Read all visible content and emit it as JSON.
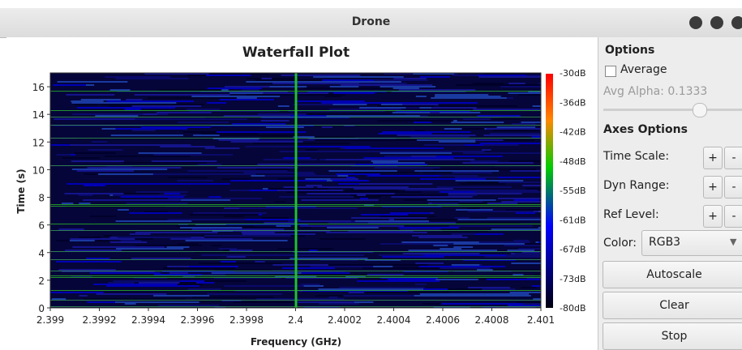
{
  "window": {
    "title": "Drone"
  },
  "plot": {
    "title": "Waterfall Plot",
    "x_label": "Frequency (GHz)",
    "y_label": "Time (s)",
    "xlim": [
      2.399,
      2.401
    ],
    "xticks": [
      2.399,
      2.3992,
      2.3994,
      2.3996,
      2.3998,
      2.4,
      2.4002,
      2.4004,
      2.4006,
      2.4008,
      2.401
    ],
    "ylim": [
      0,
      17
    ],
    "yticks": [
      0,
      2,
      4,
      6,
      8,
      10,
      12,
      14,
      16
    ],
    "colorbar_labels": [
      "-30dB",
      "-36dB",
      "-42dB",
      "-48dB",
      "-55dB",
      "-61dB",
      "-67dB",
      "-73dB",
      "-80dB"
    ]
  },
  "options": {
    "title": "Options",
    "average": "Average",
    "avg_alpha": "Avg Alpha: 0.1333",
    "axes_title": "Axes Options",
    "rows": [
      {
        "label": "Time Scale:",
        "plus": "+",
        "minus": "-"
      },
      {
        "label": "Dyn Range:",
        "plus": "+",
        "minus": "-"
      },
      {
        "label": "Ref Level:",
        "plus": "+",
        "minus": "-"
      }
    ],
    "color_label": "Color:",
    "color_value": "RGB3",
    "buttons": [
      "Autoscale",
      "Clear",
      "Stop"
    ]
  }
}
